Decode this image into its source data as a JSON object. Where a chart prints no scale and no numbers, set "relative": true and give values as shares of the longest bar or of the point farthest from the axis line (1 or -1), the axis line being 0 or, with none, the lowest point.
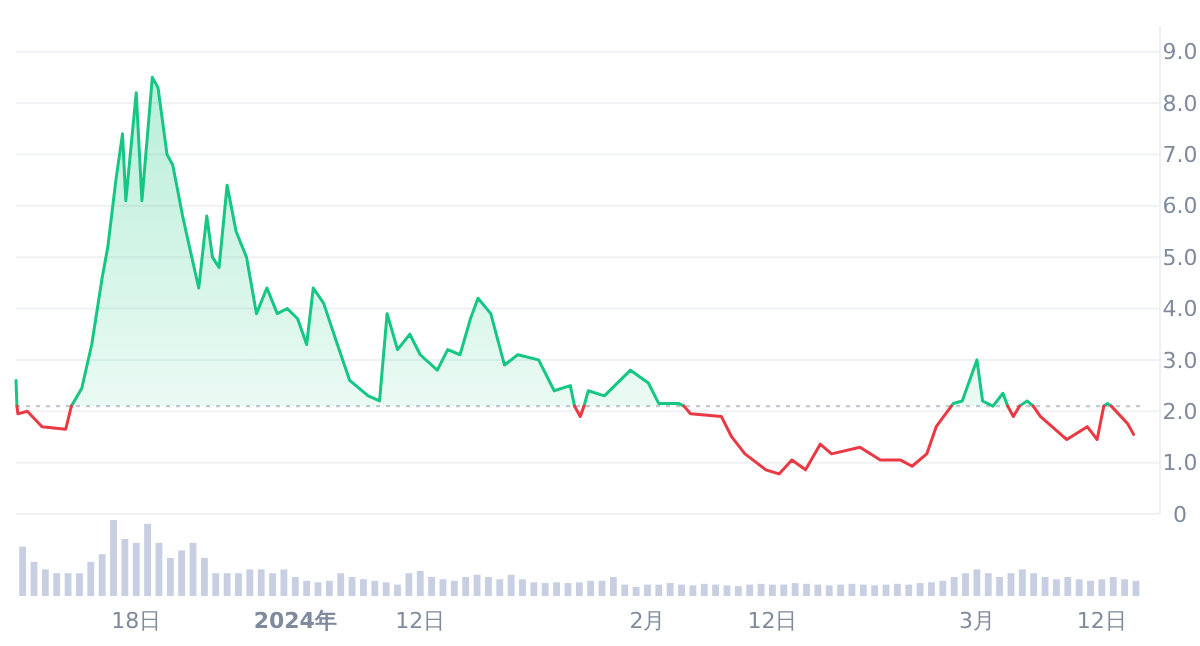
{
  "chart_data": [
    {
      "type": "line",
      "xlim": [
        "2023-12-07T10:00",
        "2024-03-15T17:00"
      ],
      "ylim": [
        0,
        9.5
      ],
      "yticks": [
        0,
        {
          "value": 1,
          "label": "1.0"
        },
        {
          "value": 2,
          "label": "2.0"
        },
        {
          "value": 3,
          "label": "3.0"
        },
        {
          "value": 4,
          "label": "4.0"
        },
        {
          "value": 5,
          "label": "5.0"
        },
        {
          "value": 6,
          "label": "6.0"
        },
        {
          "value": 7,
          "label": "7.0"
        },
        {
          "value": 8,
          "label": "8.0"
        },
        {
          "value": 9,
          "label": "9.0"
        }
      ],
      "grid": "y",
      "tick_labels": "y",
      "ref_lines": [
        {
          "axis": "y",
          "value": 2.1,
          "color": "#c4c8d0",
          "line_style": "dotted"
        }
      ],
      "series": [
        {
          "type": "area",
          "color": "#16c784",
          "x": [
            "2023-12-07T10:00",
            "2023-12-07T12:00",
            "2023-12-10T00:00",
            "2023-12-12T07:00",
            "2023-12-13T05:00",
            "2023-12-14T02:00",
            "2023-12-15T00:00",
            "2023-12-15T12:00",
            "2023-12-16T05:00",
            "2023-12-16T19:00",
            "2023-12-17T02:00",
            "2023-12-18T00:00",
            "2023-12-18T12:00",
            "2023-12-19T10:00",
            "2023-12-19T22:00",
            "2023-12-20T17:00",
            "2023-12-21T05:00",
            "2023-12-22T02:00",
            "2023-12-22T14:00",
            "2023-12-23T12:00",
            "2023-12-24T05:00",
            "2023-12-24T17:00",
            "2023-12-25T07:00",
            "2023-12-26T00:00",
            "2023-12-26T19:00",
            "2023-12-27T17:00",
            "2023-12-28T14:00",
            "2023-12-29T12:00",
            "2023-12-30T10:00",
            "2023-12-31T07:00",
            "2024-01-01T05:00",
            "2024-01-02T00:00",
            "2024-01-02T14:00",
            "2024-01-03T12:00",
            "2024-01-04T17:00",
            "2024-01-05T19:00",
            "2024-01-07T10:00",
            "2024-01-08T10:00",
            "2024-01-09T02:00",
            "2024-01-10T00:00",
            "2024-01-11T02:00",
            "2024-01-12T00:00",
            "2024-01-13T12:00",
            "2024-01-14T10:00",
            "2024-01-15T12:00",
            "2024-01-16T10:00",
            "2024-01-17T02:00",
            "2024-01-18T05:00",
            "2024-01-19T10:00",
            "2024-01-20T14:00",
            "2024-01-22T10:00",
            "2024-01-23T19:00",
            "2024-01-25T05:00",
            "2024-01-25T14:00",
            "2024-01-25T20:00",
            "2024-01-26T10:00",
            "2024-01-26T19:00",
            "2024-01-28T05:00",
            "2024-01-30T12:00",
            "2024-02-01T02:00",
            "2024-02-02T00:00",
            "2024-02-03T19:00",
            "2024-02-04T05:00",
            "2024-02-16T00:00",
            "2024-02-27T18:00",
            "2024-02-27T22:00",
            "2024-02-28T17:00",
            "2024-03-01T00:00",
            "2024-03-01T12:00",
            "2024-03-02T10:00",
            "2024-03-03T07:00",
            "2024-03-03T17:00"
          ],
          "values": [
            2.6,
            2.1,
            null,
            2.1,
            2.45,
            3.3,
            4.6,
            5.2,
            6.5,
            7.4,
            6.1,
            8.2,
            6.1,
            8.5,
            8.3,
            7.0,
            6.8,
            5.8,
            5.3,
            4.4,
            5.8,
            5.0,
            4.8,
            6.4,
            5.5,
            5.0,
            3.9,
            4.4,
            3.9,
            4.0,
            3.8,
            3.3,
            4.4,
            4.1,
            3.3,
            2.6,
            2.3,
            2.2,
            3.9,
            3.2,
            3.5,
            3.1,
            2.8,
            3.2,
            3.1,
            3.8,
            4.2,
            3.9,
            2.9,
            3.1,
            3.0,
            2.4,
            2.5,
            2.1,
            null,
            2.1,
            2.4,
            2.3,
            2.8,
            2.55,
            2.15,
            2.15,
            2.1,
            null,
            2.1,
            2.15,
            2.2,
            3.0,
            2.2,
            2.1,
            2.35,
            2.1
          ]
        },
        {
          "type": "line",
          "color": "#16c784",
          "x": [
            "2024-03-04T18:00",
            "2024-03-05T10:00",
            "2024-03-05T23:00",
            "2024-03-08T00:00",
            "2024-03-12T04:00",
            "2024-03-12T12:00",
            "2024-03-12T20:00"
          ],
          "values": [
            2.1,
            2.2,
            2.1,
            null,
            2.1,
            2.15,
            2.1
          ]
        },
        {
          "type": "line",
          "color": "#ea3943",
          "x": [
            "2023-12-07T12:00",
            "2023-12-07T14:00",
            "2023-12-08T10:00",
            "2023-12-09T17:00",
            "2023-12-11T19:00",
            "2023-12-12T07:00",
            "2023-12-20T00:00",
            "2024-01-25T14:00",
            "2024-01-26T02:00",
            "2024-01-26T10:00",
            "2024-01-28T00:00",
            "2024-02-04T05:00",
            "2024-02-04T19:00",
            "2024-02-07T12:00",
            "2024-02-08T10:00",
            "2024-02-09T14:00",
            "2024-02-11T10:00",
            "2024-02-12T14:00",
            "2024-02-13T17:00",
            "2024-02-14T22:00",
            "2024-02-16T05:00",
            "2024-02-17T05:00",
            "2024-02-19T17:00",
            "2024-02-21T12:00",
            "2024-02-23T07:00",
            "2024-02-24T07:00",
            "2024-02-25T14:00",
            "2024-02-26T10:00",
            "2024-02-27T18:00",
            "2024-03-01T00:00",
            "2024-03-03T17:00",
            "2024-03-04T05:00",
            "2024-03-04T18:00",
            "2024-03-05T12:00",
            "2024-03-05T23:00",
            "2024-03-06T14:00",
            "2024-03-08T22:00",
            "2024-03-10T17:00",
            "2024-03-11T14:00",
            "2024-03-12T04:00",
            "2024-03-12T12:00",
            "2024-03-12T20:00",
            "2024-03-14T07:00",
            "2024-03-14T19:00"
          ],
          "values": [
            2.1,
            1.95,
            2.0,
            1.7,
            1.65,
            2.1,
            null,
            2.1,
            1.9,
            2.1,
            null,
            2.1,
            1.95,
            1.9,
            1.5,
            1.17,
            0.86,
            0.78,
            1.05,
            0.86,
            1.36,
            1.17,
            1.3,
            1.05,
            1.05,
            0.93,
            1.17,
            1.7,
            2.1,
            null,
            2.1,
            1.9,
            2.1,
            null,
            2.1,
            1.9,
            1.45,
            1.7,
            1.45,
            2.1,
            null,
            2.1,
            1.75,
            1.55
          ]
        }
      ]
    },
    {
      "type": "bar",
      "relative": true,
      "color": "#c8cfe3",
      "xlim": [
        "2023-12-07T10:00",
        "2024-03-15T17:00"
      ],
      "xticks": [
        {
          "value": "2023-12-18",
          "label": "18日"
        },
        {
          "value": "2024-01-01",
          "label": "2024年"
        },
        {
          "value": "2024-01-12",
          "label": "12日"
        },
        {
          "value": "2024-02-01",
          "label": "2月"
        },
        {
          "value": "2024-02-12",
          "label": "12日"
        },
        {
          "value": "2024-03-01",
          "label": "3月"
        },
        {
          "value": "2024-03-12",
          "label": "12日"
        }
      ],
      "tick_labels": "x",
      "x": [
        "2023-12-08",
        "2023-12-09",
        "2023-12-10",
        "2023-12-11",
        "2023-12-12",
        "2023-12-13",
        "2023-12-14",
        "2023-12-15",
        "2023-12-16",
        "2023-12-17",
        "2023-12-18",
        "2023-12-19",
        "2023-12-20",
        "2023-12-21",
        "2023-12-22",
        "2023-12-23",
        "2023-12-24",
        "2023-12-25",
        "2023-12-26",
        "2023-12-27",
        "2023-12-28",
        "2023-12-29",
        "2023-12-30",
        "2023-12-31",
        "2024-01-01",
        "2024-01-02",
        "2024-01-03",
        "2024-01-04",
        "2024-01-05",
        "2024-01-06",
        "2024-01-07",
        "2024-01-08",
        "2024-01-09",
        "2024-01-10",
        "2024-01-11",
        "2024-01-12",
        "2024-01-13",
        "2024-01-14",
        "2024-01-15",
        "2024-01-16",
        "2024-01-17",
        "2024-01-18",
        "2024-01-19",
        "2024-01-20",
        "2024-01-21",
        "2024-01-22",
        "2024-01-23",
        "2024-01-24",
        "2024-01-25",
        "2024-01-26",
        "2024-01-27",
        "2024-01-28",
        "2024-01-29",
        "2024-01-30",
        "2024-01-31",
        "2024-02-01",
        "2024-02-02",
        "2024-02-03",
        "2024-02-04",
        "2024-02-05",
        "2024-02-06",
        "2024-02-07",
        "2024-02-08",
        "2024-02-09",
        "2024-02-10",
        "2024-02-11",
        "2024-02-12",
        "2024-02-13",
        "2024-02-14",
        "2024-02-15",
        "2024-02-16",
        "2024-02-17",
        "2024-02-18",
        "2024-02-19",
        "2024-02-20",
        "2024-02-21",
        "2024-02-22",
        "2024-02-23",
        "2024-02-24",
        "2024-02-25",
        "2024-02-26",
        "2024-02-27",
        "2024-02-28",
        "2024-02-29",
        "2024-03-01",
        "2024-03-02",
        "2024-03-03",
        "2024-03-04",
        "2024-03-05",
        "2024-03-06",
        "2024-03-07",
        "2024-03-08",
        "2024-03-09",
        "2024-03-10",
        "2024-03-11",
        "2024-03-12",
        "2024-03-13",
        "2024-03-14",
        "2024-03-15"
      ],
      "values": [
        0.65,
        0.45,
        0.35,
        0.3,
        0.3,
        0.3,
        0.45,
        0.55,
        1,
        0.75,
        0.7,
        0.95,
        0.7,
        0.5,
        0.6,
        0.7,
        0.5,
        0.3,
        0.3,
        0.3,
        0.35,
        0.35,
        0.3,
        0.35,
        0.25,
        0.2,
        0.18,
        0.2,
        0.3,
        0.25,
        0.22,
        0.2,
        0.18,
        0.15,
        0.3,
        0.33,
        0.25,
        0.22,
        0.2,
        0.25,
        0.28,
        0.25,
        0.22,
        0.28,
        0.22,
        0.18,
        0.17,
        0.18,
        0.17,
        0.18,
        0.2,
        0.2,
        0.25,
        0.15,
        0.12,
        0.15,
        0.15,
        0.17,
        0.15,
        0.14,
        0.16,
        0.15,
        0.14,
        0.13,
        0.15,
        0.16,
        0.15,
        0.15,
        0.17,
        0.16,
        0.15,
        0.14,
        0.15,
        0.16,
        0.15,
        0.14,
        0.15,
        0.16,
        0.15,
        0.17,
        0.18,
        0.2,
        0.25,
        0.3,
        0.35,
        0.3,
        0.25,
        0.3,
        0.35,
        0.3,
        0.25,
        0.22,
        0.25,
        0.22,
        0.2,
        0.22,
        0.25,
        0.22,
        0.2
      ]
    }
  ]
}
